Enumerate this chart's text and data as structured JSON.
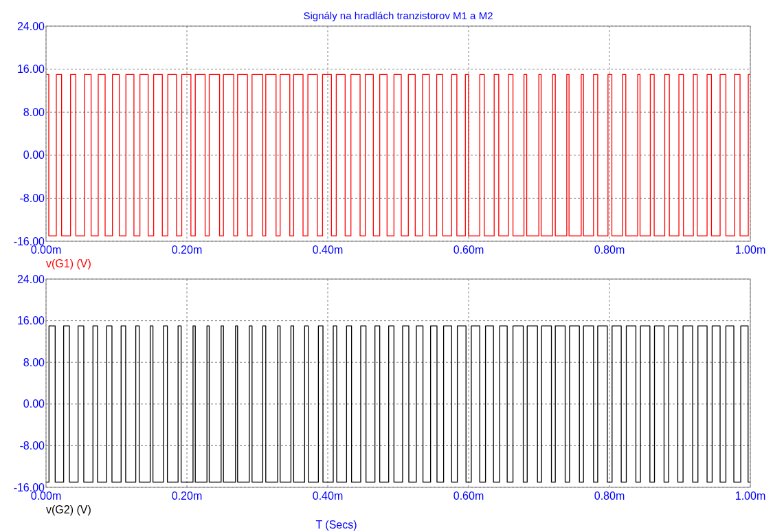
{
  "chart_data": [
    {
      "type": "step",
      "title": "Signály na hradlách tranzistorov M1 a M2",
      "xlim": [
        0,
        1
      ],
      "ylim": [
        -16,
        24
      ],
      "xticks": [
        {
          "value": 0,
          "label": "0.00m"
        },
        {
          "value": 0.2,
          "label": "0.20m"
        },
        {
          "value": 0.4,
          "label": "0.40m"
        },
        {
          "value": 0.6,
          "label": "0.60m"
        },
        {
          "value": 0.8,
          "label": "0.80m"
        },
        {
          "value": 1,
          "label": "1.00m"
        }
      ],
      "yticks": [
        {
          "value": -16,
          "label": "-16.00"
        },
        {
          "value": -8,
          "label": "-8.00"
        },
        {
          "value": 0,
          "label": "0.00"
        },
        {
          "value": 8,
          "label": "8.00"
        },
        {
          "value": 16,
          "label": "16.00"
        },
        {
          "value": 24,
          "label": "24.00"
        }
      ],
      "grid": true,
      "legend": "bottom left",
      "series": [
        {
          "name": "v(G1) (V)",
          "color": "#ff0000",
          "x": [
            0,
            0.0039,
            0.0146,
            0.0221,
            0.0348,
            0.0423,
            0.0546,
            0.064,
            0.0741,
            0.0839,
            0.0943,
            0.104,
            0.1134,
            0.1248,
            0.1333,
            0.145,
            0.1528,
            0.1651,
            0.1729,
            0.1853,
            0.1927,
            0.2057,
            0.2119,
            0.2259,
            0.2317,
            0.2464,
            0.2519,
            0.2665,
            0.272,
            0.286,
            0.2925,
            0.3077,
            0.312,
            0.3266,
            0.3324,
            0.3461,
            0.3516,
            0.3649,
            0.3718,
            0.3851,
            0.3926,
            0.4052,
            0.4121,
            0.4247,
            0.4329,
            0.4459,
            0.4533,
            0.4647,
            0.4738,
            0.4842,
            0.494,
            0.5044,
            0.5144,
            0.5242,
            0.5346,
            0.5443,
            0.5547,
            0.5632,
            0.5759,
            0.5833,
            0.5954,
            0.5999,
            0.6158,
            0.6223,
            0.6363,
            0.6428,
            0.6565,
            0.663,
            0.6786,
            0.6825,
            0.6997,
            0.703,
            0.7192,
            0.7231,
            0.7394,
            0.7426,
            0.7599,
            0.7631,
            0.7774,
            0.7833,
            0.7979,
            0.8034,
            0.8184,
            0.8232,
            0.8401,
            0.8434,
            0.858,
            0.8635,
            0.8785,
            0.885,
            0.8986,
            0.9051,
            0.9191,
            0.9246,
            0.9386,
            0.9448,
            0.9571,
            0.9653,
            0.9776,
            0.9854,
            0.9971,
            1
          ],
          "values": [
            15,
            -15,
            15,
            -15,
            15,
            -15,
            15,
            -15,
            15,
            -15,
            15,
            -15,
            15,
            -15,
            15,
            -15,
            15,
            -15,
            15,
            -15,
            15,
            -15,
            15,
            -15,
            15,
            -15,
            15,
            -15,
            15,
            -15,
            15,
            -15,
            15,
            -15,
            15,
            -15,
            15,
            -15,
            15,
            -15,
            15,
            -15,
            15,
            -15,
            15,
            -15,
            15,
            -15,
            15,
            -15,
            15,
            -15,
            15,
            -15,
            15,
            -15,
            15,
            -15,
            15,
            -15,
            15,
            -15,
            15,
            -15,
            15,
            -15,
            15,
            -15,
            15,
            -15,
            15,
            -15,
            15,
            -15,
            15,
            -15,
            15,
            -15,
            15,
            -15,
            15,
            -15,
            15,
            -15,
            15,
            -15,
            15,
            -15,
            15,
            -15,
            15,
            -15,
            15,
            -15,
            15,
            -15,
            15,
            -15,
            15,
            -15,
            15,
            15
          ]
        }
      ]
    },
    {
      "type": "step",
      "xlabel": "T (Secs)",
      "xlim": [
        0,
        1
      ],
      "ylim": [
        -16,
        24
      ],
      "xticks": [
        {
          "value": 0,
          "label": "0.00m"
        },
        {
          "value": 0.2,
          "label": "0.20m"
        },
        {
          "value": 0.4,
          "label": "0.40m"
        },
        {
          "value": 0.6,
          "label": "0.60m"
        },
        {
          "value": 0.8,
          "label": "0.80m"
        },
        {
          "value": 1,
          "label": "1.00m"
        }
      ],
      "yticks": [
        {
          "value": -16,
          "label": "-16.00"
        },
        {
          "value": -8,
          "label": "-8.00"
        },
        {
          "value": 0,
          "label": "0.00"
        },
        {
          "value": 8,
          "label": "8.00"
        },
        {
          "value": 16,
          "label": "16.00"
        },
        {
          "value": 24,
          "label": "24.00"
        }
      ],
      "grid": true,
      "legend": "bottom left",
      "series": [
        {
          "name": "v(G2) (V)",
          "color": "#000000",
          "x": [
            0,
            0.0042,
            0.013,
            0.025,
            0.0332,
            0.0455,
            0.0536,
            0.0666,
            0.0731,
            0.0861,
            0.0936,
            0.1066,
            0.1131,
            0.1274,
            0.1323,
            0.1479,
            0.1518,
            0.1667,
            0.1723,
            0.1875,
            0.1918,
            0.2087,
            0.2119,
            0.2285,
            0.2317,
            0.2486,
            0.2519,
            0.2691,
            0.272,
            0.2886,
            0.2925,
            0.3077,
            0.312,
            0.3289,
            0.3324,
            0.3477,
            0.3516,
            0.3672,
            0.3724,
            0.3867,
            0.3932,
            0.4078,
            0.4127,
            0.4267,
            0.4338,
            0.4468,
            0.4543,
            0.467,
            0.4738,
            0.4865,
            0.494,
            0.5063,
            0.5151,
            0.5258,
            0.5352,
            0.546,
            0.5551,
            0.5645,
            0.5759,
            0.584,
            0.5963,
            0.6038,
            0.6158,
            0.624,
            0.6353,
            0.6441,
            0.6548,
            0.663,
            0.6776,
            0.6832,
            0.6978,
            0.7036,
            0.7176,
            0.7231,
            0.7371,
            0.7433,
            0.7573,
            0.7631,
            0.7774,
            0.7833,
            0.7969,
            0.8037,
            0.8167,
            0.8239,
            0.8375,
            0.844,
            0.8574,
            0.8639,
            0.8775,
            0.884,
            0.897,
            0.9045,
            0.9181,
            0.9256,
            0.9386,
            0.9458,
            0.9571,
            0.9653,
            0.9766,
            0.9864,
            0.9968,
            1
          ],
          "values": [
            -15,
            15,
            -15,
            15,
            -15,
            15,
            -15,
            15,
            -15,
            15,
            -15,
            15,
            -15,
            15,
            -15,
            15,
            -15,
            15,
            -15,
            15,
            -15,
            15,
            -15,
            15,
            -15,
            15,
            -15,
            15,
            -15,
            15,
            -15,
            15,
            -15,
            15,
            -15,
            15,
            -15,
            15,
            -15,
            15,
            -15,
            15,
            -15,
            15,
            -15,
            15,
            -15,
            15,
            -15,
            15,
            -15,
            15,
            -15,
            15,
            -15,
            15,
            -15,
            15,
            -15,
            15,
            -15,
            15,
            -15,
            15,
            -15,
            15,
            -15,
            15,
            -15,
            15,
            -15,
            15,
            -15,
            15,
            -15,
            15,
            -15,
            15,
            -15,
            15,
            -15,
            15,
            -15,
            15,
            -15,
            15,
            -15,
            15,
            -15,
            15,
            -15,
            15,
            -15,
            15,
            -15,
            15,
            -15,
            15,
            -15,
            15,
            -15,
            -15
          ]
        }
      ]
    }
  ]
}
